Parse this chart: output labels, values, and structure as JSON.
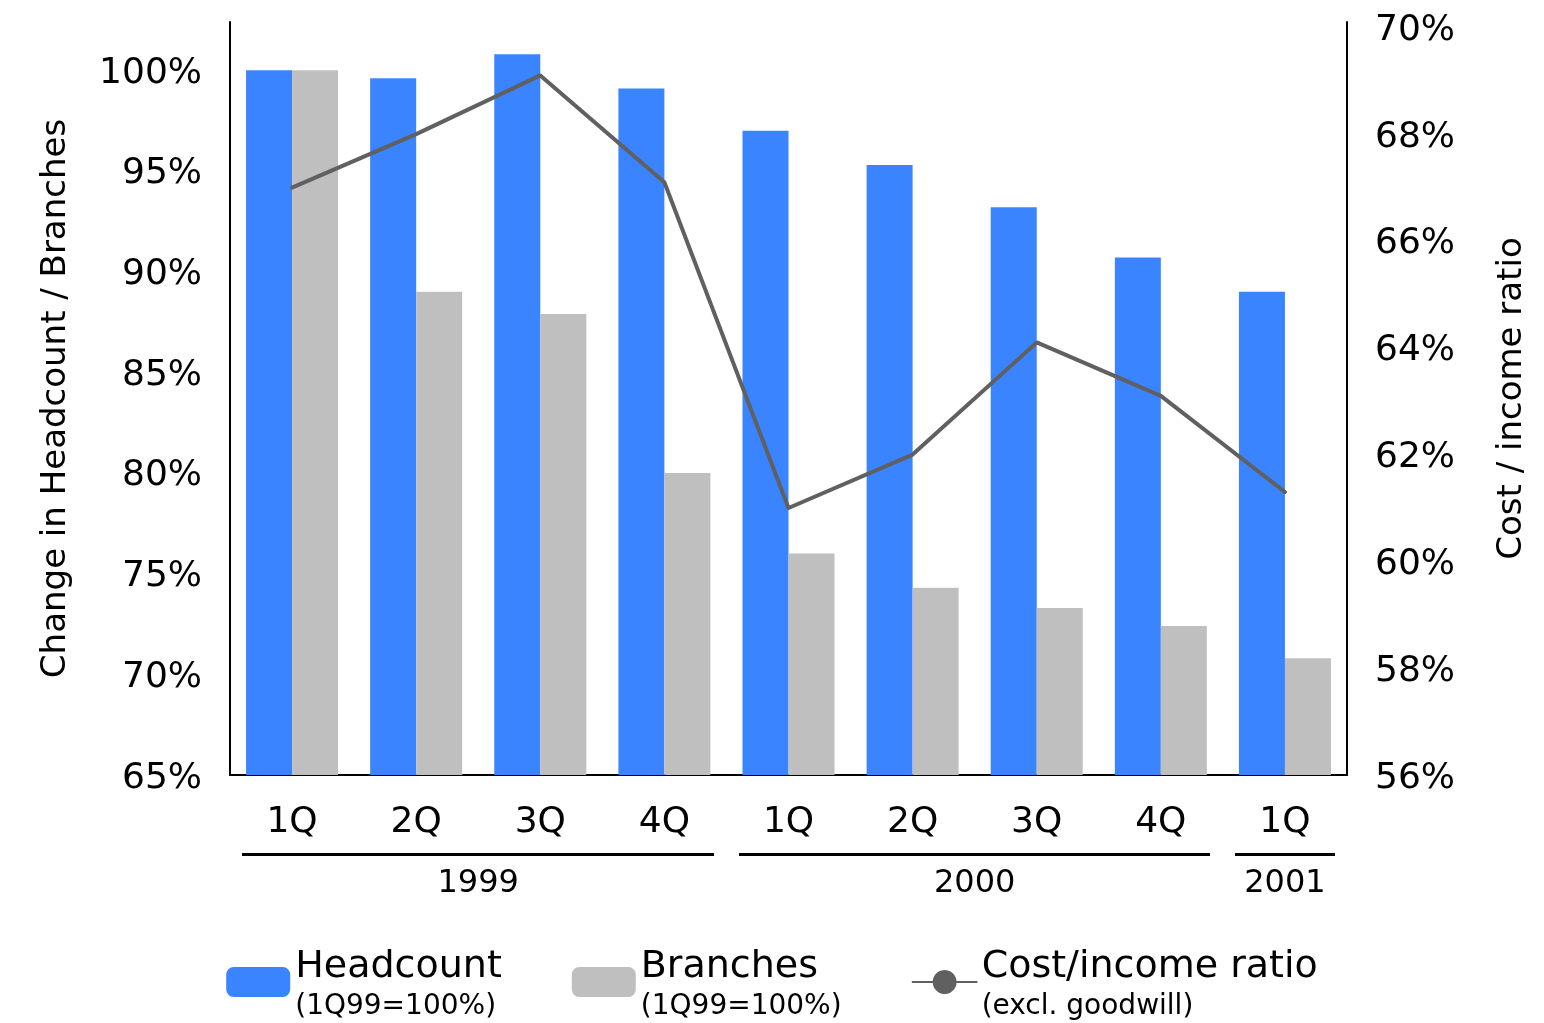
{
  "chart_data": {
    "type": "bar",
    "categories": [
      "1Q",
      "2Q",
      "3Q",
      "4Q",
      "1Q",
      "2Q",
      "3Q",
      "4Q",
      "1Q"
    ],
    "ylabel": "Change in Headcount / Branches",
    "y2label": "Cost / income ratio",
    "annotations": [
      "1999",
      "2000",
      "2001"
    ],
    "series": [
      {
        "name": "Headcount\n(1Q99=100%)",
        "color": "#3a84ff",
        "values": [
          100,
          99.6,
          100.8,
          99.1,
          97.0,
          95.3,
          93.2,
          90.7,
          89.0
        ]
      },
      {
        "name": "Branches\n(1Q99=100%)",
        "color": "#bfbfbf",
        "values": [
          100,
          89.0,
          87.9,
          80.0,
          76.0,
          74.3,
          73.3,
          72.4,
          70.8
        ]
      },
      {
        "name": "Cost/income ratio\n(excl. goodwill)",
        "type": "line",
        "axis": "y2",
        "color": "#606060",
        "values": [
          67.0,
          68.0,
          69.1,
          67.1,
          61.0,
          62.0,
          64.1,
          63.1,
          61.3
        ]
      }
    ],
    "ylim": [
      65,
      102.4
    ],
    "yticks": [
      {
        "value": 65,
        "label": "65%"
      },
      {
        "value": 70,
        "label": "70%"
      },
      {
        "value": 75,
        "label": "75%"
      },
      {
        "value": 80,
        "label": "80%"
      },
      {
        "value": 85,
        "label": "85%"
      },
      {
        "value": 90,
        "label": "90%"
      },
      {
        "value": 95,
        "label": "95%"
      },
      {
        "value": 100,
        "label": "100%"
      }
    ],
    "y2lim": [
      56,
      70.1
    ],
    "y2ticks": [
      {
        "value": 56,
        "label": "56%"
      },
      {
        "value": 58,
        "label": "58%"
      },
      {
        "value": 60,
        "label": "60%"
      },
      {
        "value": 62,
        "label": "62%"
      },
      {
        "value": 64,
        "label": "64%"
      },
      {
        "value": 66,
        "label": "66%"
      },
      {
        "value": 68,
        "label": "68%"
      },
      {
        "value": 70,
        "label": "70%"
      }
    ],
    "grid": false,
    "legend": "bottom",
    "marker": "none",
    "line_style": "solid"
  }
}
